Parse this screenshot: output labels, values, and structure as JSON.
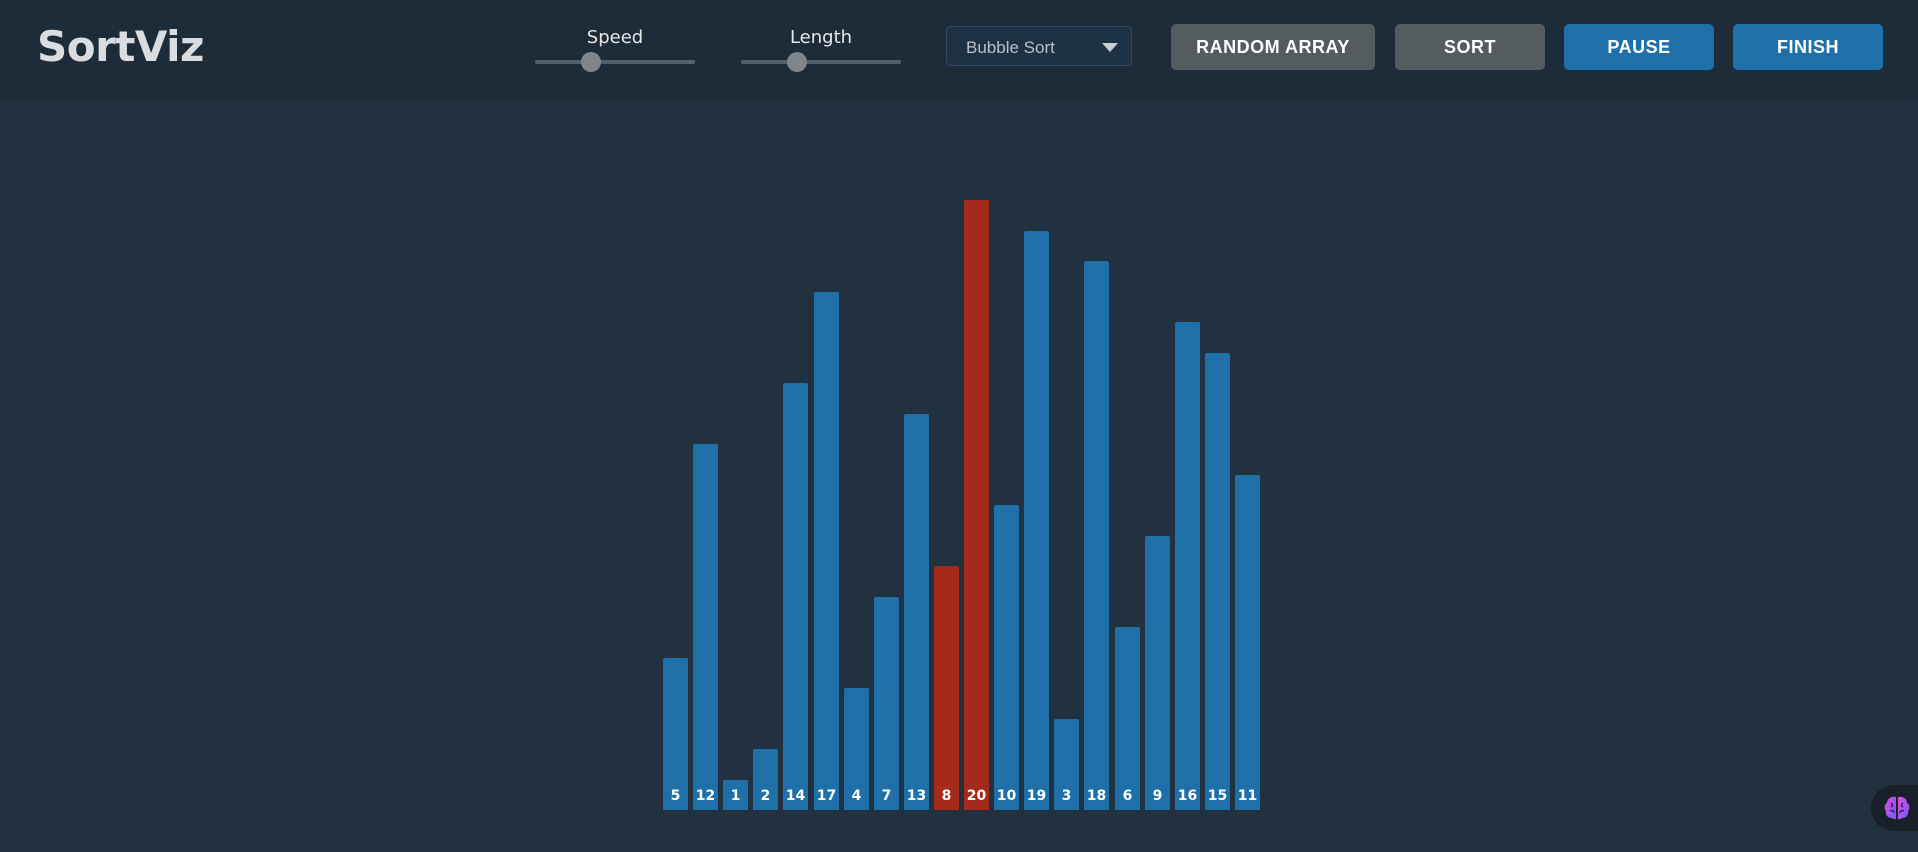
{
  "app": {
    "title": "SortViz"
  },
  "controls": {
    "speed": {
      "label": "Speed",
      "value": 0.35
    },
    "length": {
      "label": "Length",
      "value": 0.35
    },
    "algorithm": {
      "selected": "Bubble Sort"
    },
    "buttons": {
      "random_array": "RANDOM ARRAY",
      "sort": "SORT",
      "pause": "PAUSE",
      "finish": "FINISH"
    }
  },
  "colors": {
    "bar_default": "#1f6fa8",
    "bar_compare": "#a52a1b",
    "background": "#223140",
    "topbar": "#1e2b38"
  },
  "chart_data": {
    "type": "bar",
    "values": [
      5,
      12,
      1,
      2,
      14,
      17,
      4,
      7,
      13,
      8,
      20,
      10,
      19,
      3,
      18,
      6,
      9,
      16,
      15,
      11
    ],
    "highlighted_indices": [
      9,
      10
    ],
    "xlabel": "",
    "ylabel": "",
    "ylim": [
      0,
      20
    ]
  },
  "icons": {
    "assistant": "brain-icon"
  }
}
